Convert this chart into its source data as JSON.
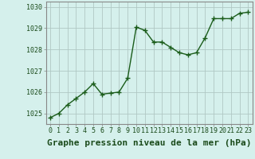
{
  "x": [
    0,
    1,
    2,
    3,
    4,
    5,
    6,
    7,
    8,
    9,
    10,
    11,
    12,
    13,
    14,
    15,
    16,
    17,
    18,
    19,
    20,
    21,
    22,
    23
  ],
  "y": [
    1024.8,
    1025.0,
    1025.4,
    1025.7,
    1026.0,
    1026.4,
    1025.9,
    1025.95,
    1026.0,
    1026.65,
    1029.05,
    1028.9,
    1028.35,
    1028.35,
    1028.1,
    1027.85,
    1027.75,
    1027.85,
    1028.55,
    1029.45,
    1029.45,
    1029.45,
    1029.7,
    1029.75
  ],
  "xlim": [
    -0.5,
    23.5
  ],
  "ylim": [
    1024.5,
    1030.25
  ],
  "yticks": [
    1025,
    1026,
    1027,
    1028,
    1029,
    1030
  ],
  "xticks": [
    0,
    1,
    2,
    3,
    4,
    5,
    6,
    7,
    8,
    9,
    10,
    11,
    12,
    13,
    14,
    15,
    16,
    17,
    18,
    19,
    20,
    21,
    22,
    23
  ],
  "xlabel": "Graphe pression niveau de la mer (hPa)",
  "line_color": "#1a5c1a",
  "marker": "+",
  "marker_size": 4.0,
  "bg_color": "#d5f0ec",
  "grid_color": "#b0c8c4",
  "tick_label_fontsize": 6.0,
  "xlabel_fontsize": 8.0,
  "line_width": 1.0,
  "spine_color": "#888888"
}
